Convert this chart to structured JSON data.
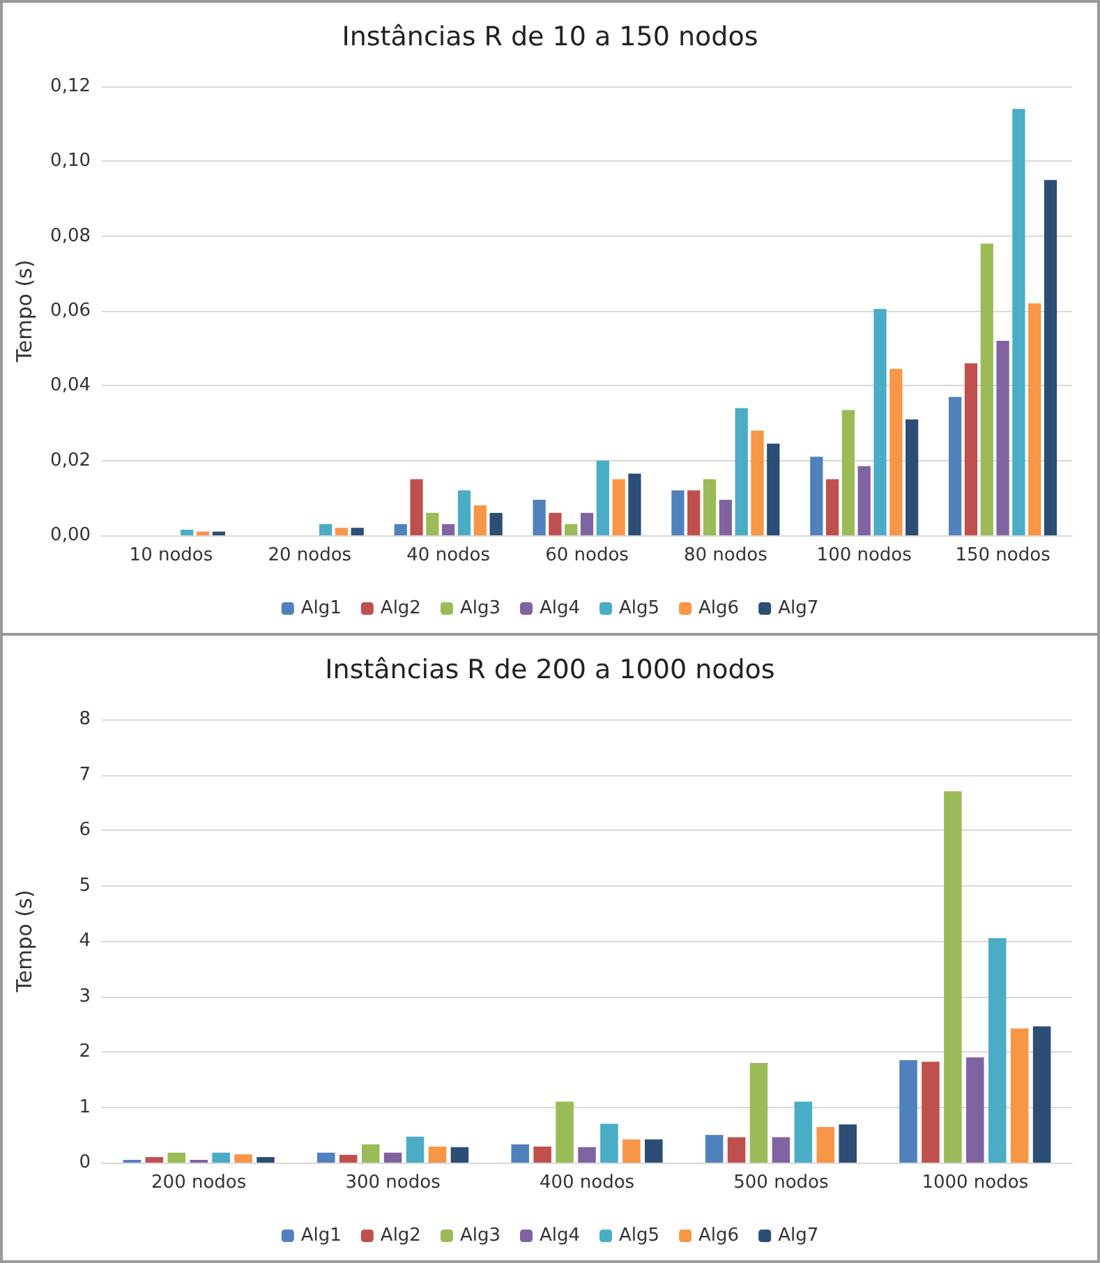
{
  "chart_data": [
    {
      "type": "bar",
      "title": "Instâncias R de 10 a 150 nodos",
      "ylabel": "Tempo (s)",
      "categories": [
        "10 nodos",
        "20 nodos",
        "40 nodos",
        "60 nodos",
        "80 nodos",
        "100 nodos",
        "150 nodos"
      ],
      "series": [
        {
          "name": "Alg1",
          "color": "#4f81bd",
          "values": [
            0,
            0,
            0.003,
            0.0095,
            0.012,
            0.021,
            0.037
          ]
        },
        {
          "name": "Alg2",
          "color": "#c0504d",
          "values": [
            0,
            0,
            0.015,
            0.006,
            0.012,
            0.015,
            0.046
          ]
        },
        {
          "name": "Alg3",
          "color": "#9bbb59",
          "values": [
            0,
            0,
            0.006,
            0.003,
            0.015,
            0.0335,
            0.078
          ]
        },
        {
          "name": "Alg4",
          "color": "#8064a2",
          "values": [
            0,
            0,
            0.003,
            0.006,
            0.0095,
            0.0185,
            0.052
          ]
        },
        {
          "name": "Alg5",
          "color": "#4bacc6",
          "values": [
            0.0015,
            0.003,
            0.012,
            0.02,
            0.034,
            0.0605,
            0.114
          ]
        },
        {
          "name": "Alg6",
          "color": "#f79646",
          "values": [
            0.001,
            0.002,
            0.008,
            0.015,
            0.028,
            0.0445,
            0.062
          ]
        },
        {
          "name": "Alg7",
          "color": "#2c4d75",
          "values": [
            0.001,
            0.002,
            0.006,
            0.0165,
            0.0245,
            0.031,
            0.095
          ]
        }
      ],
      "ylim": [
        0,
        0.12
      ],
      "yticks": [
        {
          "value": 0,
          "label": "0,00"
        },
        {
          "value": 0.02,
          "label": "0,02"
        },
        {
          "value": 0.04,
          "label": "0,04"
        },
        {
          "value": 0.06,
          "label": "0,06"
        },
        {
          "value": 0.08,
          "label": "0,08"
        },
        {
          "value": 0.1,
          "label": "0,10"
        },
        {
          "value": 0.12,
          "label": "0,12"
        }
      ],
      "grid": "y",
      "legend": "bottom"
    },
    {
      "type": "bar",
      "title": "Instâncias R de 200 a 1000 nodos",
      "ylabel": "Tempo (s)",
      "categories": [
        "200 nodos",
        "300 nodos",
        "400 nodos",
        "500 nodos",
        "1000 nodos"
      ],
      "series": [
        {
          "name": "Alg1",
          "color": "#4f81bd",
          "values": [
            0.05,
            0.18,
            0.33,
            0.5,
            1.85
          ]
        },
        {
          "name": "Alg2",
          "color": "#c0504d",
          "values": [
            0.1,
            0.14,
            0.29,
            0.46,
            1.82
          ]
        },
        {
          "name": "Alg3",
          "color": "#9bbb59",
          "values": [
            0.18,
            0.33,
            1.1,
            1.8,
            6.7
          ]
        },
        {
          "name": "Alg4",
          "color": "#8064a2",
          "values": [
            0.05,
            0.18,
            0.28,
            0.46,
            1.9
          ]
        },
        {
          "name": "Alg5",
          "color": "#4bacc6",
          "values": [
            0.18,
            0.47,
            0.7,
            1.1,
            4.05
          ]
        },
        {
          "name": "Alg6",
          "color": "#f79646",
          "values": [
            0.15,
            0.29,
            0.42,
            0.64,
            2.42
          ]
        },
        {
          "name": "Alg7",
          "color": "#2c4d75",
          "values": [
            0.1,
            0.28,
            0.42,
            0.69,
            2.46
          ]
        }
      ],
      "ylim": [
        0,
        8
      ],
      "yticks": [
        0,
        1,
        2,
        3,
        4,
        5,
        6,
        7,
        8
      ],
      "grid": "y",
      "legend": "bottom"
    }
  ]
}
